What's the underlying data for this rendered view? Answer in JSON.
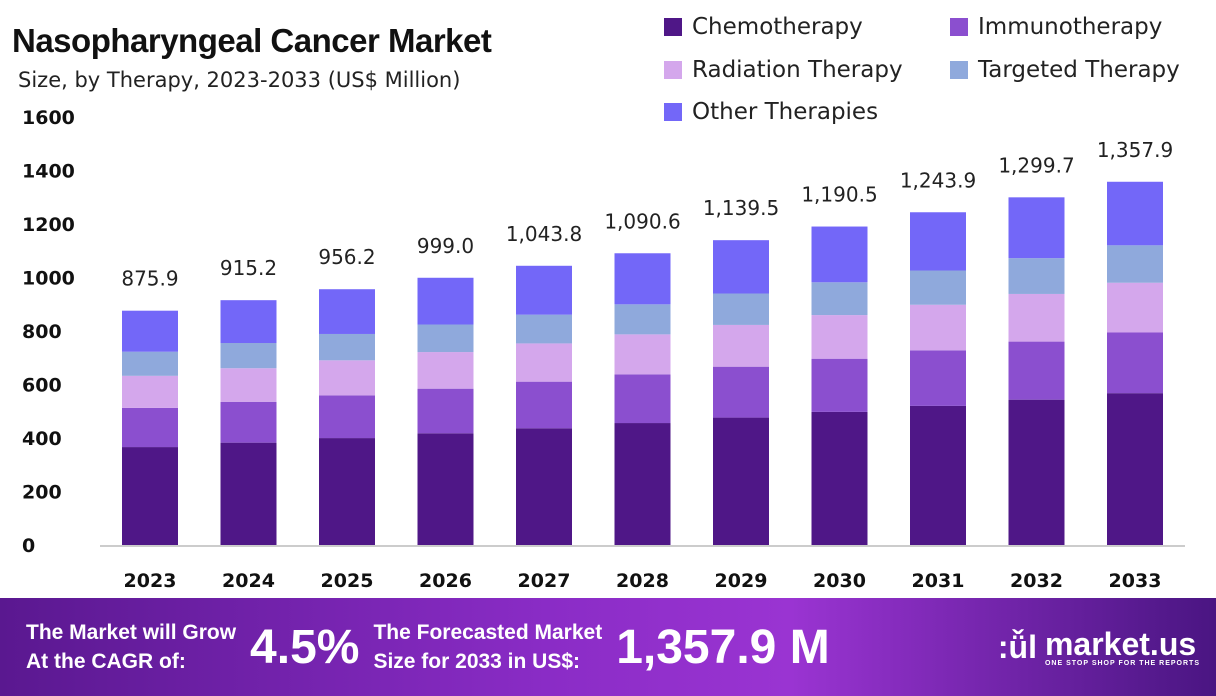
{
  "chart_data": {
    "type": "bar",
    "stacked": true,
    "title": "Nasopharyngeal Cancer Market",
    "subtitle": "Size, by Therapy, 2023-2033 (US$ Million)",
    "categories": [
      "2023",
      "2024",
      "2025",
      "2026",
      "2027",
      "2028",
      "2029",
      "2030",
      "2031",
      "2032",
      "2033"
    ],
    "totals": [
      "875.9",
      "915.2",
      "956.2",
      "999.0",
      "1,043.8",
      "1,090.6",
      "1,139.5",
      "1,190.5",
      "1,243.9",
      "1,299.7",
      "1,357.9"
    ],
    "series": [
      {
        "name": "Chemotherapy",
        "color": "#4f1787",
        "values": [
          366.1,
          382.6,
          399.7,
          417.6,
          436.3,
          455.9,
          476.3,
          497.6,
          520.0,
          543.3,
          567.6
        ]
      },
      {
        "name": "Immunotherapy",
        "color": "#8b4fcf",
        "values": [
          146.3,
          152.8,
          159.7,
          166.8,
          174.3,
          182.1,
          190.3,
          198.8,
          207.7,
          217.1,
          226.8
        ]
      },
      {
        "name": "Radiation Therapy",
        "color": "#d4a7ec",
        "values": [
          120.0,
          125.4,
          131.0,
          136.9,
          143.0,
          149.4,
          156.1,
          163.1,
          170.4,
          178.1,
          186.0
        ]
      },
      {
        "name": "Targeted Therapy",
        "color": "#8fa9dc",
        "values": [
          90.2,
          94.3,
          98.5,
          102.9,
          107.5,
          112.3,
          117.4,
          122.6,
          128.1,
          133.9,
          139.9
        ]
      },
      {
        "name": "Other Therapies",
        "color": "#7367f8",
        "values": [
          153.3,
          160.1,
          167.3,
          174.8,
          182.7,
          190.9,
          199.4,
          208.4,
          217.7,
          227.3,
          237.6
        ]
      }
    ],
    "ylim": [
      0,
      1600
    ],
    "yticks": [
      "0",
      "200",
      "400",
      "600",
      "800",
      "1000",
      "1200",
      "1400",
      "1600"
    ],
    "grid": false,
    "legend_position": "top-right"
  },
  "footer": {
    "cagr_label_1": "The Market will Grow",
    "cagr_label_2": "At the CAGR of:",
    "cagr_value": "4.5%",
    "forecast_label_1": "The Forecasted Market",
    "forecast_label_2": "Size for 2033 in US$:",
    "forecast_value": "1,357.9 M",
    "brand": "market.us",
    "brand_tagline": "ONE STOP SHOP FOR THE REPORTS"
  }
}
